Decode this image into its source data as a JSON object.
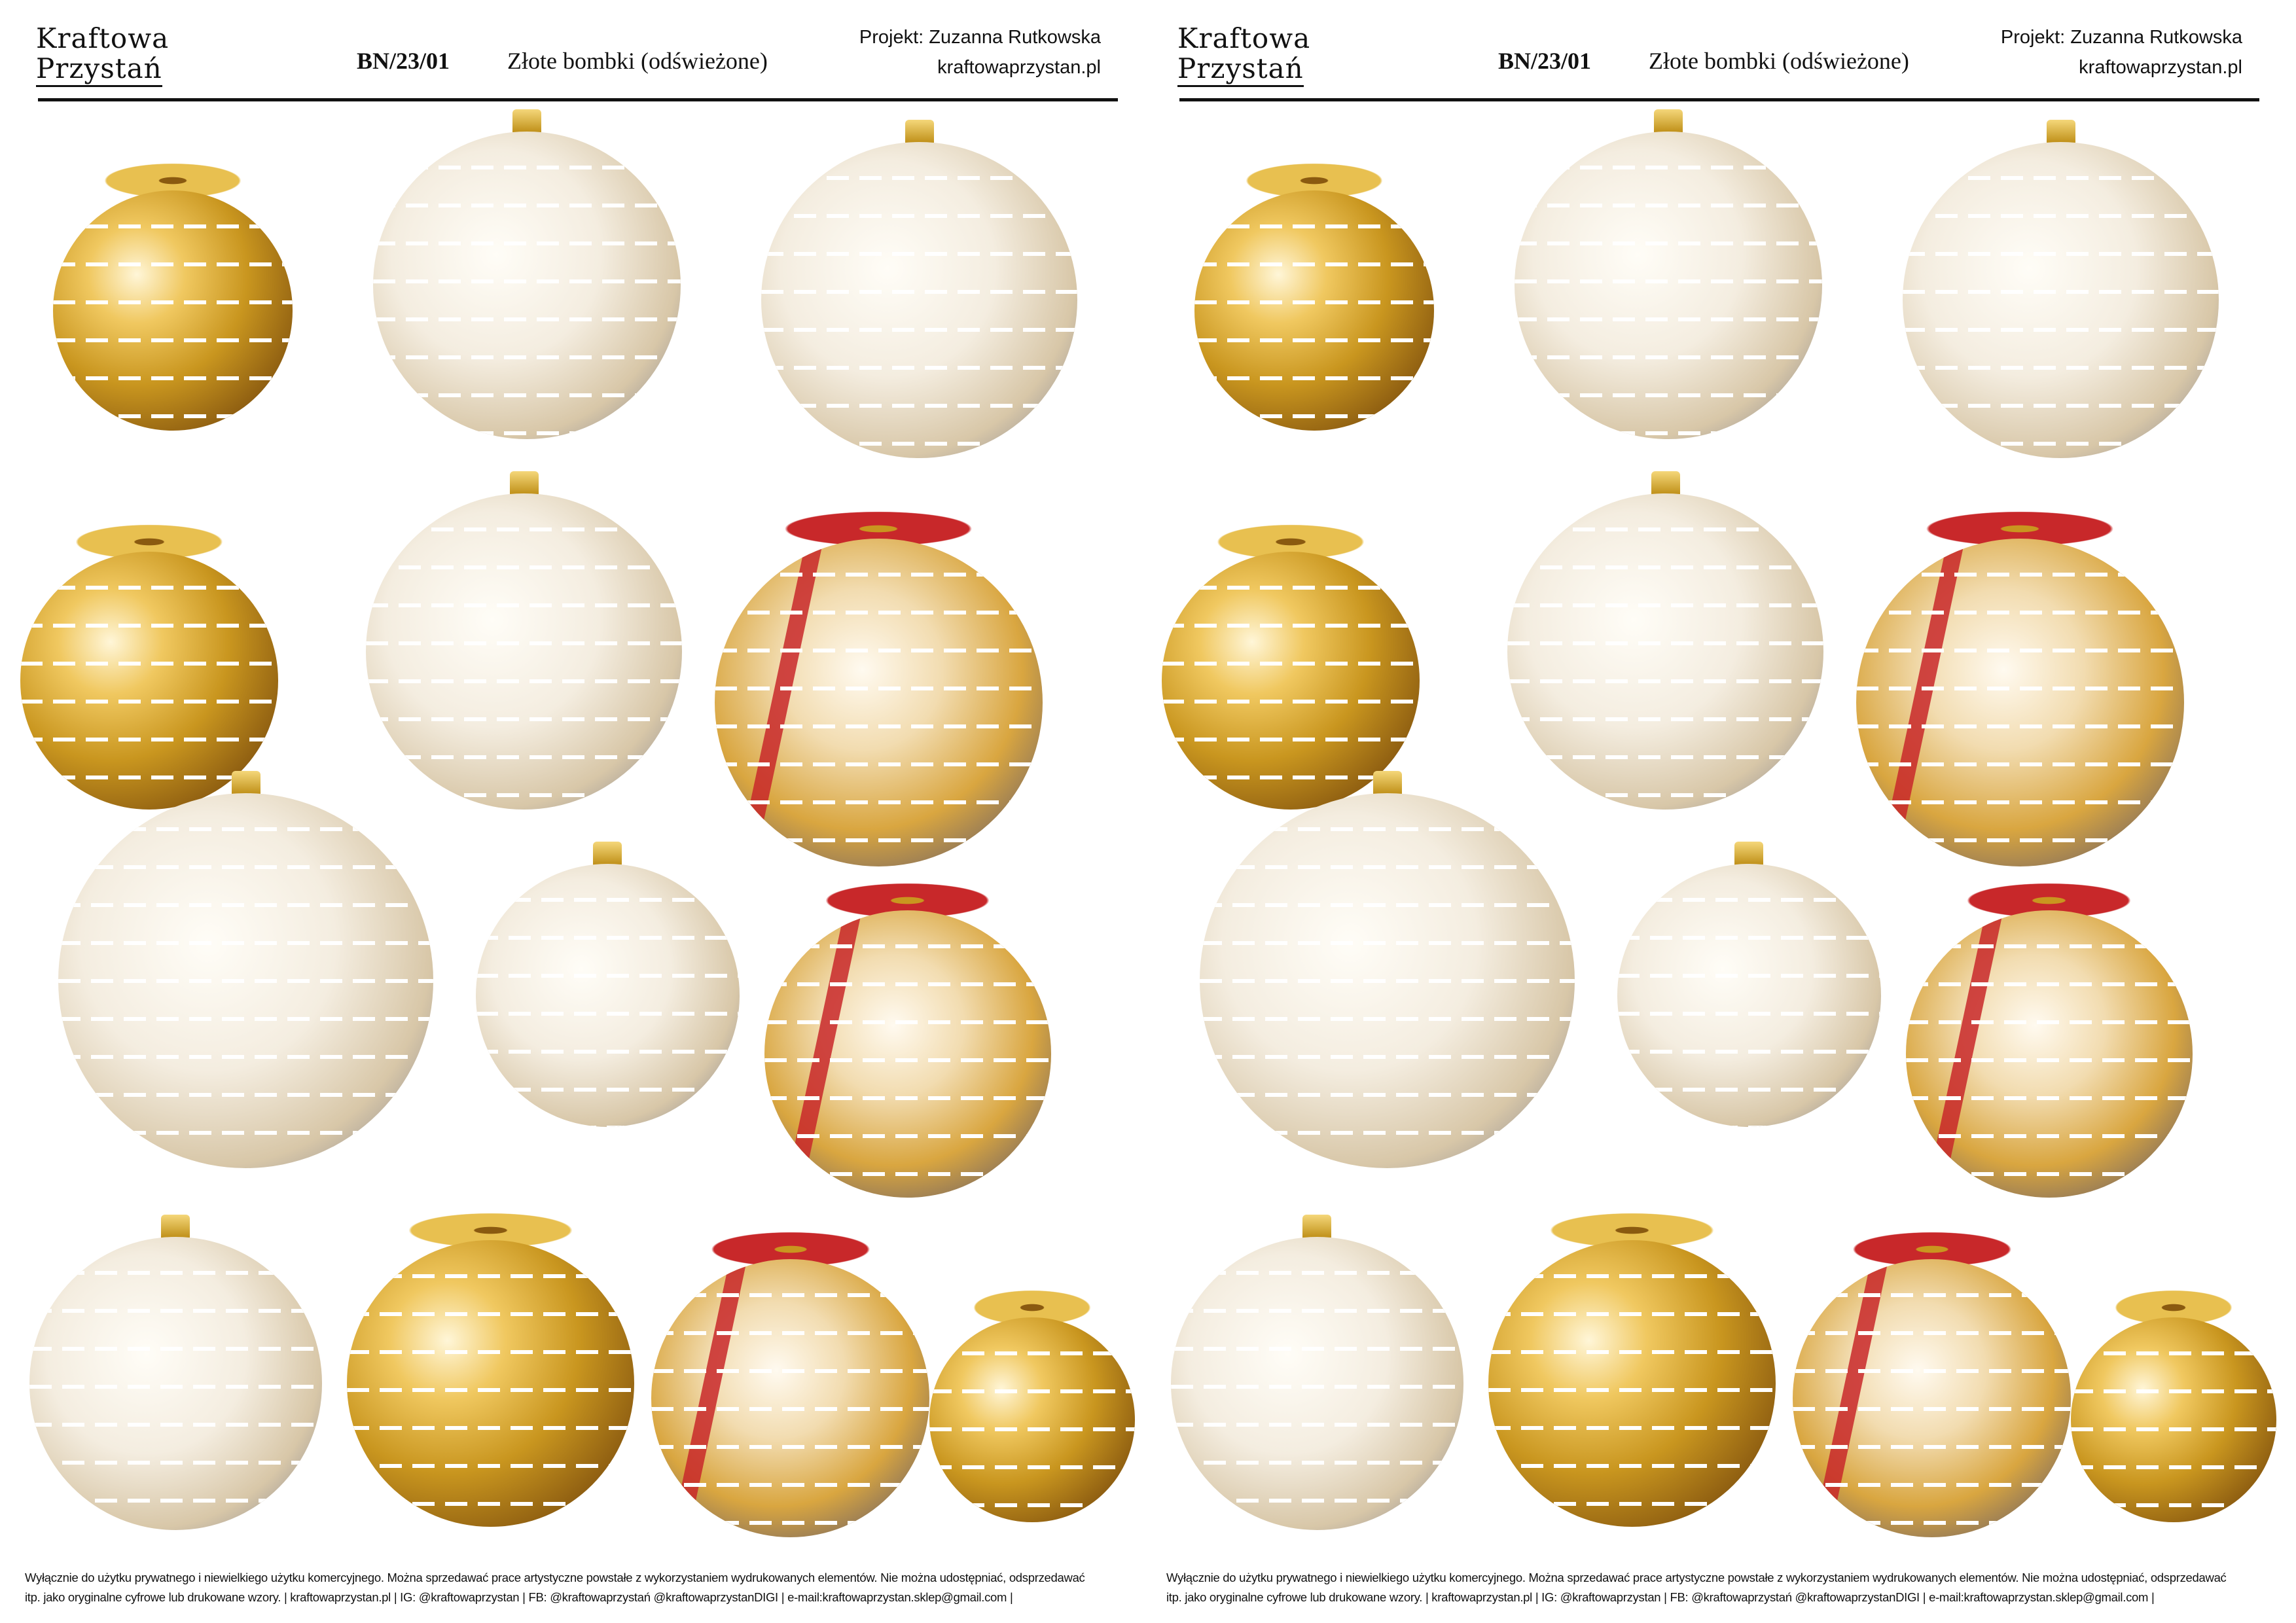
{
  "header": {
    "logo_line1": "Kraftowa",
    "logo_line2": "Przystań",
    "code": "BN/23/01",
    "title": "Złote bombki (odświeżone)",
    "author": "Projekt: Zuzanna Rutkowska",
    "website": "kraftowaprzystan.pl"
  },
  "footer": {
    "line1": "Wyłącznie do użytku prywatnego i niewielkiego użytku komercyjnego. Można sprzedawać prace artystyczne powstałe z wykorzystaniem wydrukowanych elementów. Nie można udostępniać, odsprzedawać",
    "line2": "itp. jako oryginalne cyfrowe lub drukowane wzory.  | kraftowaprzystan.pl  | IG: @kraftowaprzystan | FB: @kraftowaprzystań @kraftowaprzystanDIGI | e-mail:kraftowaprzystan.sklep@gmail.com |"
  },
  "ornaments": [
    {
      "tone": "gold",
      "topper": "gold-bow"
    },
    {
      "tone": "white",
      "topper": "cap"
    },
    {
      "tone": "white",
      "topper": "cap"
    },
    {
      "tone": "gold",
      "topper": "gold-bow"
    },
    {
      "tone": "white",
      "topper": "cap"
    },
    {
      "tone": "white-gold",
      "topper": "red-bow"
    },
    {
      "tone": "white",
      "topper": "cap"
    },
    {
      "tone": "white",
      "topper": "cap"
    },
    {
      "tone": "white-gold",
      "topper": "red-bow"
    },
    {
      "tone": "white",
      "topper": "cap"
    },
    {
      "tone": "gold",
      "topper": "gold-bow"
    },
    {
      "tone": "white-gold",
      "topper": "red-bow"
    },
    {
      "tone": "gold",
      "topper": "gold-bow"
    }
  ],
  "colors": {
    "gold": "#c9961f",
    "ribbon": "#c8282a",
    "text": "#111111"
  }
}
